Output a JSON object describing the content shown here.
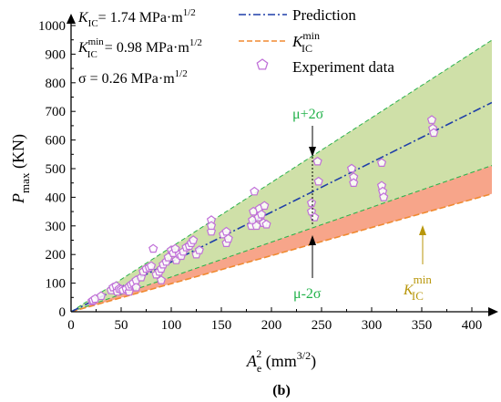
{
  "chart_data": {
    "type": "scatter",
    "xlim": [
      0,
      420
    ],
    "ylim": [
      0,
      1000
    ],
    "x_ticks": [
      "0",
      "50",
      "100",
      "150",
      "200",
      "250",
      "300",
      "350",
      "400"
    ],
    "y_ticks": [
      "0",
      "100",
      "200",
      "300",
      "400",
      "500",
      "600",
      "700",
      "800",
      "900",
      "1000"
    ],
    "grid": false,
    "legend_position": "top-right",
    "subfigure_label": "(b)",
    "annotations": {
      "kic": "= 1.74 MPa·m",
      "kic_min": "= 0.98 MPa·m",
      "sigma": "σ = 0.26 MPa·m",
      "exp_half": "1/2",
      "mu_plus": "μ+2σ",
      "mu_minus": "μ-2σ"
    },
    "legend": {
      "prediction": "Prediction",
      "experiment": "Experiment data"
    },
    "colors": {
      "prediction": "#1f3fa8",
      "kic_min": "#f08a30",
      "upper_band_fill": "#cfe0a8",
      "lower_band_fill": "#f7a58a",
      "band_edge": "#2bb24c",
      "marker": "#c070d8",
      "mu_label": "#22b24a",
      "kmin_label": "#b8960a"
    },
    "series": [
      {
        "name": "Prediction",
        "kind": "line",
        "x": [
          0,
          420
        ],
        "y": [
          0,
          731
        ]
      },
      {
        "name": "K_IC^min",
        "kind": "line",
        "x": [
          0,
          420
        ],
        "y": [
          0,
          412
        ]
      },
      {
        "name": "μ+2σ",
        "kind": "bound",
        "x": [
          0,
          420
        ],
        "y": [
          0,
          949
        ]
      },
      {
        "name": "μ-2σ",
        "kind": "bound",
        "x": [
          0,
          420
        ],
        "y": [
          0,
          511
        ]
      },
      {
        "name": "Experiment data",
        "kind": "scatter",
        "points": [
          [
            21,
            37
          ],
          [
            22,
            40
          ],
          [
            24,
            45
          ],
          [
            30,
            55
          ],
          [
            40,
            75
          ],
          [
            42,
            85
          ],
          [
            45,
            90
          ],
          [
            46,
            70
          ],
          [
            48,
            80
          ],
          [
            50,
            78
          ],
          [
            52,
            75
          ],
          [
            55,
            80
          ],
          [
            58,
            70
          ],
          [
            58,
            88
          ],
          [
            60,
            95
          ],
          [
            62,
            100
          ],
          [
            65,
            85
          ],
          [
            65,
            110
          ],
          [
            70,
            120
          ],
          [
            72,
            140
          ],
          [
            75,
            150
          ],
          [
            78,
            155
          ],
          [
            80,
            160
          ],
          [
            82,
            220
          ],
          [
            85,
            130
          ],
          [
            88,
            140
          ],
          [
            90,
            150
          ],
          [
            90,
            110
          ],
          [
            92,
            165
          ],
          [
            95,
            175
          ],
          [
            97,
            190
          ],
          [
            100,
            215
          ],
          [
            102,
            205
          ],
          [
            104,
            220
          ],
          [
            105,
            180
          ],
          [
            108,
            200
          ],
          [
            110,
            195
          ],
          [
            112,
            210
          ],
          [
            115,
            225
          ],
          [
            118,
            230
          ],
          [
            120,
            240
          ],
          [
            122,
            250
          ],
          [
            125,
            200
          ],
          [
            128,
            215
          ],
          [
            140,
            320
          ],
          [
            140,
            280
          ],
          [
            140,
            300
          ],
          [
            152,
            270
          ],
          [
            155,
            280
          ],
          [
            155,
            240
          ],
          [
            157,
            255
          ],
          [
            180,
            300
          ],
          [
            181,
            320
          ],
          [
            182,
            350
          ],
          [
            183,
            420
          ],
          [
            185,
            300
          ],
          [
            187,
            330
          ],
          [
            188,
            360
          ],
          [
            190,
            340
          ],
          [
            192,
            310
          ],
          [
            193,
            370
          ],
          [
            195,
            305
          ],
          [
            240,
            350
          ],
          [
            240,
            380
          ],
          [
            243,
            330
          ],
          [
            246,
            525
          ],
          [
            247,
            455
          ],
          [
            280,
            500
          ],
          [
            282,
            470
          ],
          [
            282,
            450
          ],
          [
            310,
            520
          ],
          [
            310,
            440
          ],
          [
            311,
            420
          ],
          [
            312,
            400
          ],
          [
            360,
            670
          ],
          [
            361,
            640
          ],
          [
            362,
            625
          ]
        ]
      }
    ]
  }
}
